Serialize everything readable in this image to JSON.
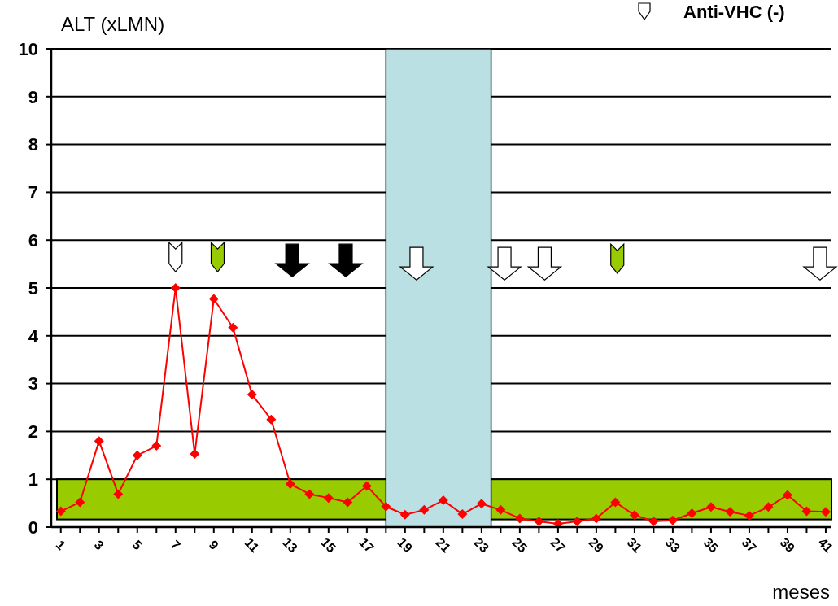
{
  "chart_data": {
    "type": "line",
    "xlabel": "meses",
    "ylabel": "ALT (xLMN)",
    "x": [
      1,
      2,
      3,
      4,
      5,
      6,
      7,
      8,
      9,
      10,
      11,
      12,
      13,
      14,
      15,
      16,
      17,
      18,
      19,
      20,
      21,
      22,
      23,
      24,
      25,
      26,
      27,
      28,
      29,
      30,
      31,
      32,
      33,
      34,
      35,
      36,
      37,
      38,
      39,
      40,
      41
    ],
    "series": [
      {
        "color": "#ff0000",
        "values": [
          0.33,
          0.52,
          1.8,
          0.69,
          1.5,
          1.7,
          5.0,
          1.53,
          4.77,
          4.17,
          2.77,
          2.25,
          0.9,
          0.69,
          0.61,
          0.52,
          0.86,
          0.43,
          0.26,
          0.36,
          0.56,
          0.27,
          0.49,
          0.36,
          0.18,
          0.12,
          0.07,
          0.12,
          0.18,
          0.52,
          0.25,
          0.12,
          0.14,
          0.29,
          0.42,
          0.32,
          0.24,
          0.42,
          0.67,
          0.33,
          0.32
        ]
      }
    ],
    "xlim": [
      0.5,
      41.3
    ],
    "xticks": [
      1,
      {
        "value": 2,
        "label": null
      },
      3,
      {
        "value": 4,
        "label": null
      },
      5,
      {
        "value": 6,
        "label": null
      },
      7,
      {
        "value": 8,
        "label": null
      },
      9,
      {
        "value": 10,
        "label": null
      },
      11,
      {
        "value": 12,
        "label": null
      },
      13,
      {
        "value": 14,
        "label": null
      },
      15,
      {
        "value": 16,
        "label": null
      },
      17,
      {
        "value": 18,
        "label": null
      },
      19,
      {
        "value": 20,
        "label": null
      },
      21,
      {
        "value": 22,
        "label": null
      },
      23,
      {
        "value": 24,
        "label": null
      },
      25,
      {
        "value": 26,
        "label": null
      },
      27,
      {
        "value": 28,
        "label": null
      },
      29,
      {
        "value": 30,
        "label": null
      },
      31,
      {
        "value": 32,
        "label": null
      },
      33,
      {
        "value": 34,
        "label": null
      },
      35,
      {
        "value": 36,
        "label": null
      },
      37,
      {
        "value": 38,
        "label": null
      },
      39,
      {
        "value": 40,
        "label": null
      },
      41
    ],
    "ylim": [
      0,
      10
    ],
    "yticks": [
      0,
      1,
      2,
      3,
      4,
      5,
      6,
      7,
      8,
      9,
      10
    ],
    "grid": "y",
    "marker": "diamond",
    "line_style": "solid",
    "bands": [
      {
        "axis": "y",
        "from": 0.16,
        "to": 1,
        "color": "#99cc00"
      },
      {
        "axis": "x",
        "from": 18,
        "to": 23.5,
        "color": "#bbe0e3"
      }
    ],
    "annotations": [
      "Anti-VHC (-)"
    ]
  }
}
